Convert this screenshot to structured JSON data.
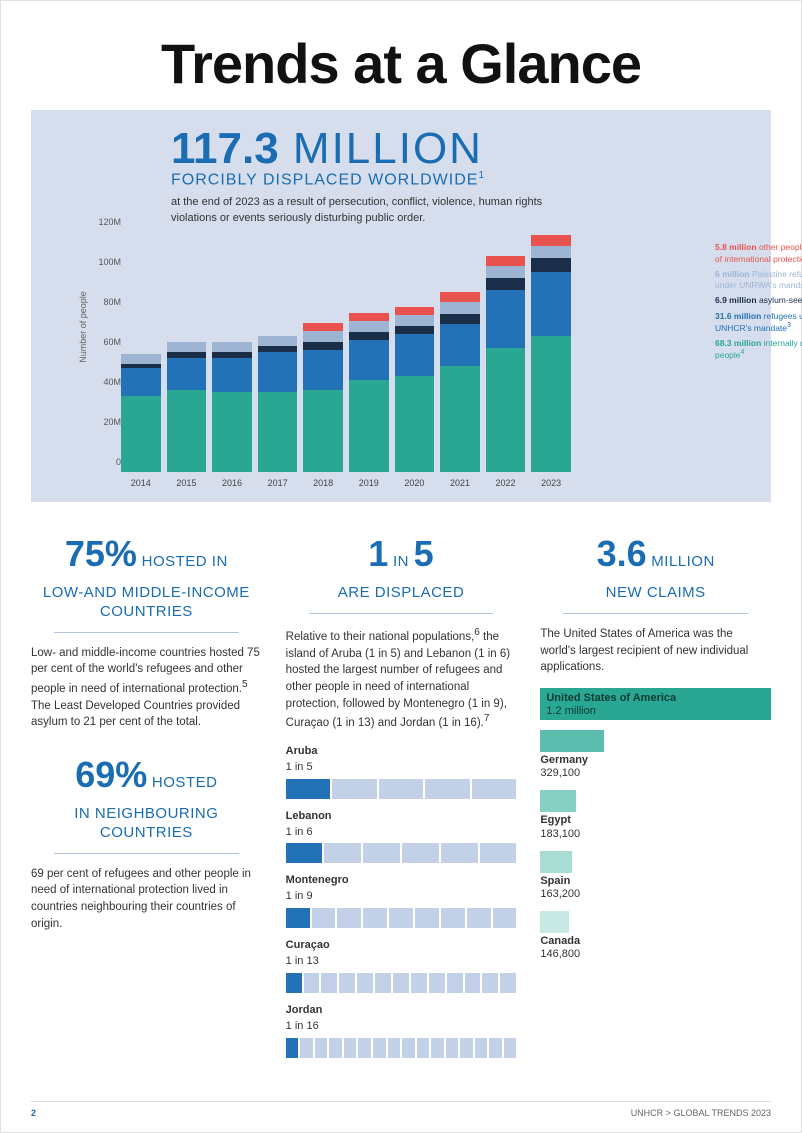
{
  "title": "Trends at a Glance",
  "banner": {
    "big_number": "117.3",
    "big_unit": " MILLION",
    "subhead": "FORCIBLY DISPLACED WORLDWIDE",
    "sup": "1",
    "description": "at the end of 2023 as a result of persecution, conflict, violence, human rights violations or events seriously disturbing public order."
  },
  "chart": {
    "type": "stacked-bar",
    "ylabel": "Number of people",
    "ymax": 120,
    "ytick_step": 20,
    "yticks": [
      "0",
      "20M",
      "40M",
      "60M",
      "80M",
      "100M",
      "120M"
    ],
    "years": [
      "2014",
      "2015",
      "2016",
      "2017",
      "2018",
      "2019",
      "2020",
      "2021",
      "2022",
      "2023"
    ],
    "series": [
      {
        "key": "idp",
        "color": "#2aa793",
        "legend_value": "68.3 million",
        "legend_label": "internally displaced people",
        "sup": "4"
      },
      {
        "key": "refugees",
        "color": "#2371b6",
        "legend_value": "31.6 million",
        "legend_label": "refugees under UNHCR's mandate",
        "sup": "3"
      },
      {
        "key": "asylum",
        "color": "#1a2e4a",
        "legend_value": "6.9 million",
        "legend_label": "asylum-seekers",
        "sup": ""
      },
      {
        "key": "unrwa",
        "color": "#9db4d3",
        "legend_value": "6 million",
        "legend_label": "Palestine refugees under UNRWA's mandate",
        "sup": ""
      },
      {
        "key": "other",
        "color": "#e8534f",
        "legend_value": "5.8 million",
        "legend_label": "other people in need of international protection",
        "sup": "2"
      }
    ],
    "stacks": [
      {
        "idp": 38,
        "refugees": 14,
        "asylum": 2,
        "unrwa": 5,
        "other": 0
      },
      {
        "idp": 41,
        "refugees": 16,
        "asylum": 3,
        "unrwa": 5,
        "other": 0
      },
      {
        "idp": 40,
        "refugees": 17,
        "asylum": 3,
        "unrwa": 5,
        "other": 0
      },
      {
        "idp": 40,
        "refugees": 20,
        "asylum": 3,
        "unrwa": 5,
        "other": 0
      },
      {
        "idp": 41,
        "refugees": 20,
        "asylum": 4,
        "unrwa": 5.5,
        "other": 4
      },
      {
        "idp": 46,
        "refugees": 20,
        "asylum": 4,
        "unrwa": 5.5,
        "other": 4
      },
      {
        "idp": 48,
        "refugees": 21,
        "asylum": 4,
        "unrwa": 5.5,
        "other": 4
      },
      {
        "idp": 53,
        "refugees": 21,
        "asylum": 5,
        "unrwa": 6,
        "other": 5
      },
      {
        "idp": 62,
        "refugees": 29,
        "asylum": 6,
        "unrwa": 6,
        "other": 5
      },
      {
        "idp": 68,
        "refugees": 32,
        "asylum": 7,
        "unrwa": 6,
        "other": 5.8
      }
    ],
    "legend_colors": {
      "other": "#e8534f",
      "unrwa": "#9db4d3",
      "asylum": "#1a2e4a",
      "refugees": "#2371b6",
      "idp": "#2aa793"
    }
  },
  "col1": {
    "stat1_num": "75%",
    "stat1_small": " HOSTED IN",
    "stat1_sub": "LOW-AND MIDDLE-INCOME COUNTRIES",
    "para1": "Low- and middle-income countries hosted 75 per cent of the world's refugees and other people in need of international protection.",
    "para1_sup": "5",
    "para1b": " The Least Developed Countries provided asylum to 21 per cent of the total.",
    "stat2_num": "69%",
    "stat2_small": " HOSTED",
    "stat2_sub": "IN NEIGHBOURING COUNTRIES",
    "para2": "69 per cent of refugees and other people in need of international protection lived in countries neighbouring their countries of origin."
  },
  "col2": {
    "stat_pre": "1",
    "stat_mid": " IN ",
    "stat_post": "5",
    "stat_sub": "ARE DISPLACED",
    "para": "Relative to their national populations,",
    "para_sup": "6",
    "para2": " the island of Aruba (1 in 5) and Lebanon (1 in 6) hosted the largest number of refugees and other people in need of international protection, followed by Montenegro (1 in 9), Curaçao (1 in 13) and Jordan (1 in 16).",
    "para2_sup": "7",
    "ratio_dark": "#2371b6",
    "ratio_light": "#c3d1e8",
    "ratios": [
      {
        "country": "Aruba",
        "text": "1 in 5",
        "n": 5
      },
      {
        "country": "Lebanon",
        "text": "1 in 6",
        "n": 6
      },
      {
        "country": "Montenegro",
        "text": "1 in 9",
        "n": 9
      },
      {
        "country": "Curaçao",
        "text": "1 in 13",
        "n": 13
      },
      {
        "country": "Jordan",
        "text": "1 in 16",
        "n": 16
      }
    ]
  },
  "col3": {
    "stat_num": "3.6",
    "stat_small": " MILLION",
    "stat_sub": "NEW CLAIMS",
    "para": "The United States of America was the world's largest recipient of new individual applications.",
    "bar_max": 1200000,
    "bar_color_range": [
      "#2aa793",
      "#5cbcad",
      "#86cfc3",
      "#a8ddd4",
      "#c6eae3"
    ],
    "claims": [
      {
        "country": "United States of America",
        "value_label": "1.2 million",
        "value": 1200000
      },
      {
        "country": "Germany",
        "value_label": "329,100",
        "value": 329100
      },
      {
        "country": "Egypt",
        "value_label": "183,100",
        "value": 183100
      },
      {
        "country": "Spain",
        "value_label": "163,200",
        "value": 163200
      },
      {
        "country": "Canada",
        "value_label": "146,800",
        "value": 146800
      }
    ]
  },
  "footer": {
    "page": "2",
    "source": "UNHCR > GLOBAL TRENDS 2023"
  }
}
